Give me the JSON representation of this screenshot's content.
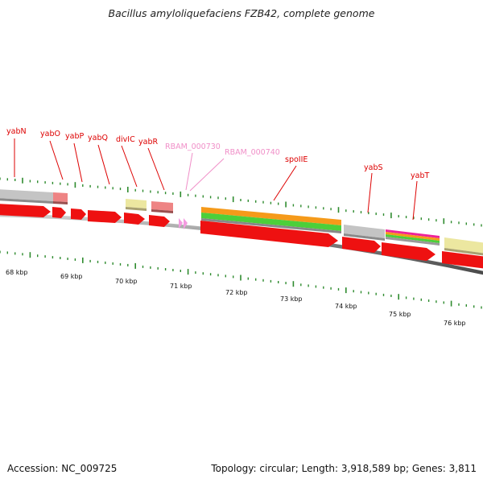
{
  "title": "Bacillus amyloliquefaciens FZB42, complete genome",
  "accession": "Accession: NC_009725",
  "summary": "Topology: circular; Length: 3,918,589 bp; Genes: 3,811",
  "colors": {
    "cds": "#ee1111",
    "gene_grey": "#c4c4c4",
    "gene_pink": "#ee8484",
    "gene_yellow": "#ece7a0",
    "rna": "#f49be0",
    "orange": "#f59a1a",
    "green": "#4ccf3a",
    "magenta": "#ee2299",
    "label_red": "#dd0000",
    "label_pink": "#f08fc8",
    "tick_green": "#2e8b2e"
  },
  "ruler": {
    "labels": [
      "68 kbp",
      "69 kbp",
      "70 kbp",
      "71 kbp",
      "72 kbp",
      "73 kbp",
      "74 kbp",
      "75 kbp",
      "76 kbp"
    ]
  },
  "genes": [
    {
      "label": "yabN",
      "color": "red"
    },
    {
      "label": "yabO",
      "color": "red"
    },
    {
      "label": "yabP",
      "color": "red"
    },
    {
      "label": "yabQ",
      "color": "red"
    },
    {
      "label": "divIC",
      "color": "red"
    },
    {
      "label": "yabR",
      "color": "red"
    },
    {
      "label": "RBAM_000730",
      "color": "pink"
    },
    {
      "label": "RBAM_000740",
      "color": "pink"
    },
    {
      "label": "spoIIE",
      "color": "red"
    },
    {
      "label": "yabS",
      "color": "red"
    },
    {
      "label": "yabT",
      "color": "red"
    }
  ]
}
